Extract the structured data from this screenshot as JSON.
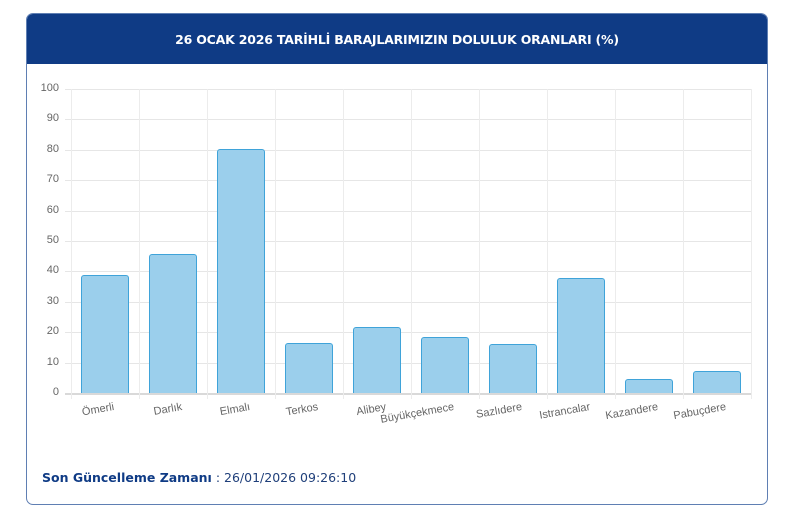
{
  "header": {
    "title": "26 OCAK 2026 TARİHLİ BARAJLARIMIZIN DOLULUK ORANLARI (%)"
  },
  "footer": {
    "label": "Son Güncelleme Zamanı",
    "separator": " : ",
    "value": "26/01/2026 09:26:10"
  },
  "colors": {
    "header_bg": "#0f3b85",
    "bar_fill": "#9bcfec",
    "bar_border": "#3fa3d9",
    "grid": "#e6e6e6",
    "card_border": "#5f7fb3"
  },
  "chart_data": {
    "type": "bar",
    "title": "26 OCAK 2026 TARİHLİ BARAJLARIMIZIN DOLULUK ORANLARI (%)",
    "xlabel": "",
    "ylabel": "",
    "ylim": [
      0,
      100
    ],
    "yticks": [
      0,
      10,
      20,
      30,
      40,
      50,
      60,
      70,
      80,
      90,
      100
    ],
    "grid": true,
    "legend": null,
    "categories": [
      "Ömerli",
      "Darlık",
      "Elmalı",
      "Terkos",
      "Alibey",
      "Büyükçekmece",
      "Sazlıdere",
      "Istrancalar",
      "Kazandere",
      "Pabuçdere"
    ],
    "values": [
      38.9,
      45.6,
      80.4,
      16.4,
      21.8,
      18.4,
      16.0,
      37.8,
      4.6,
      7.3
    ]
  }
}
